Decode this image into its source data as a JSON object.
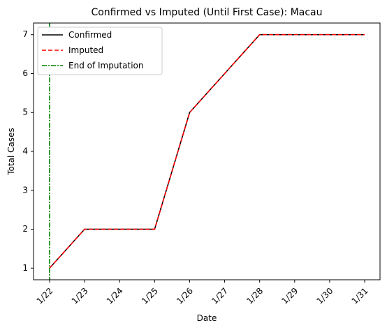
{
  "chart_data": {
    "type": "line",
    "title": "Confirmed vs Imputed (Until First Case): Macau",
    "xlabel": "Date",
    "ylabel": "Total Cases",
    "categories": [
      "1/22",
      "1/23",
      "1/24",
      "1/25",
      "1/26",
      "1/27",
      "1/28",
      "1/29",
      "1/30",
      "1/31"
    ],
    "ylim": [
      0.7,
      7.3
    ],
    "yticks": [
      1,
      2,
      3,
      4,
      5,
      6,
      7
    ],
    "grid": false,
    "legend_position": "top-left",
    "series": [
      {
        "name": "Confirmed",
        "color": "#000000",
        "style": "solid",
        "values": [
          1,
          2,
          2,
          2,
          5,
          6,
          7,
          7,
          7,
          7
        ]
      },
      {
        "name": "Imputed",
        "color": "#ff0000",
        "style": "dashed",
        "values": [
          1,
          2,
          2,
          2,
          5,
          6,
          7,
          7,
          7,
          7
        ]
      }
    ],
    "vlines": [
      {
        "name": "End of Imputation",
        "color": "#008000",
        "style": "dashdot",
        "x": "1/22"
      }
    ]
  }
}
